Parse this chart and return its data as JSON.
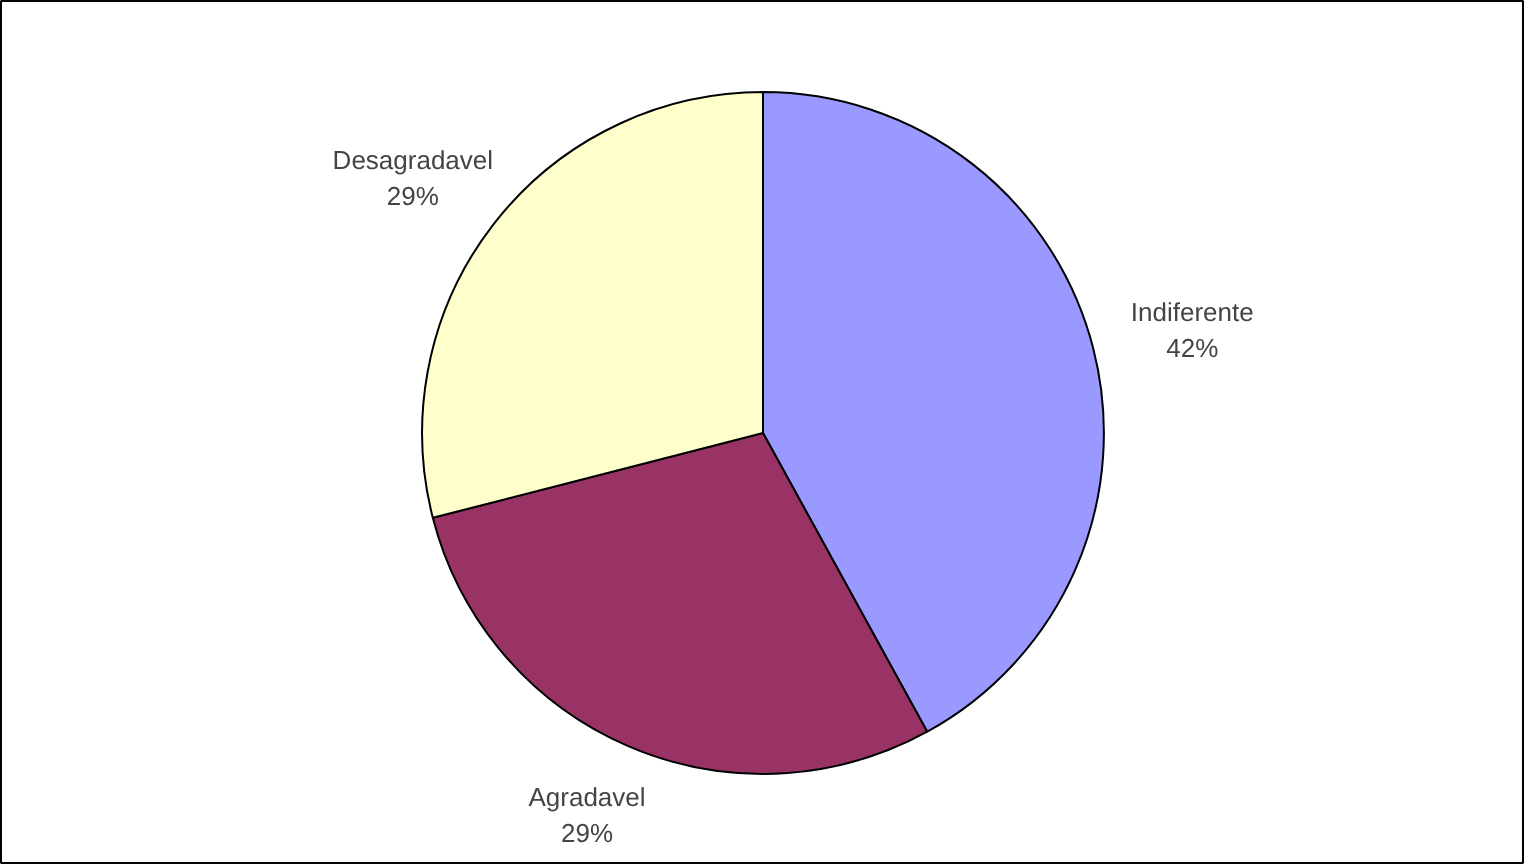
{
  "chart_data": {
    "type": "pie",
    "categories": [
      "Indiferente",
      "Agradavel",
      "Desagradavel"
    ],
    "values": [
      42,
      29,
      29
    ],
    "colors": [
      "#9999ff",
      "#993366",
      "#ffffcc"
    ],
    "value_labels": [
      "42%",
      "29%",
      "29%"
    ]
  }
}
